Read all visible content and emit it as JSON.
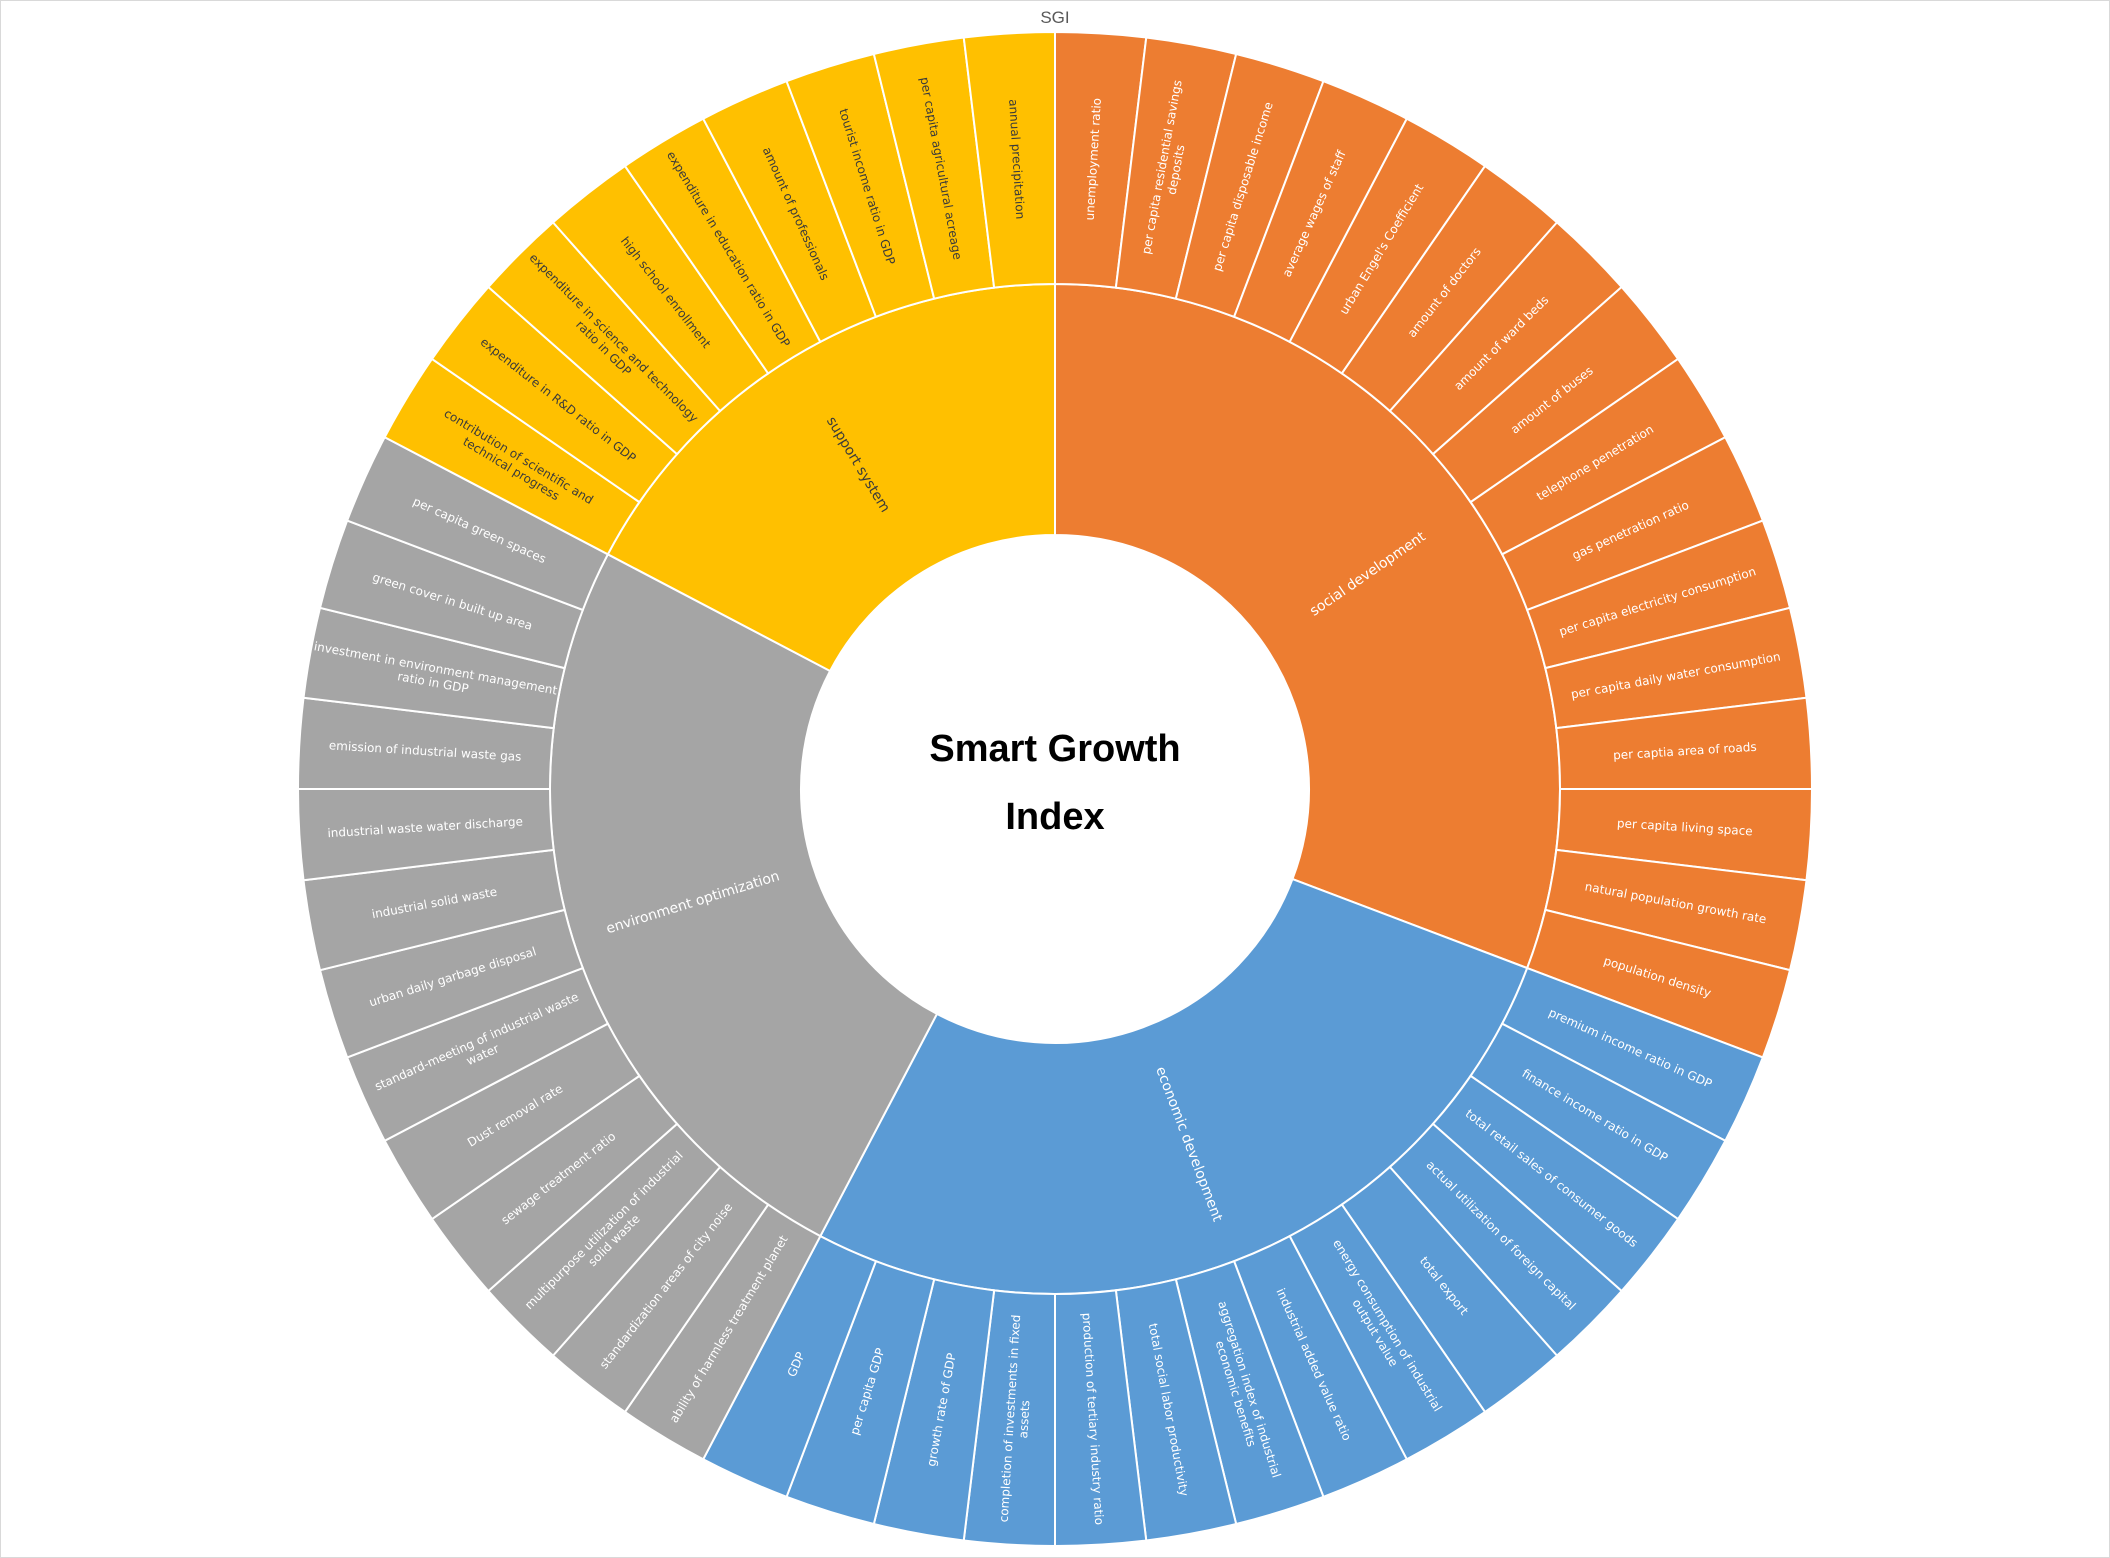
{
  "chart_data": {
    "type": "sunburst",
    "title": "SGI",
    "center_label": [
      "Smart Growth",
      "Index"
    ],
    "colors": {
      "social development": "#ED7D31",
      "economic development": "#5B9BD5",
      "environment optimization": "#A5A5A5",
      "support system": "#FFC000",
      "separator": "#FFFFFF",
      "leaf_text_light": "#FFFFFF",
      "leaf_text_dark": "#3A3A3A"
    },
    "categories": [
      {
        "name": "social development",
        "children": [
          "unemployment ratio",
          "per capita residential savings deposits",
          "per capita disposable income",
          "average wages of staff",
          "urban Engel's Coefficient",
          "amount of doctors",
          "amount of ward beds",
          "amount of buses",
          "telephone penetration",
          "gas penetration ratio",
          "per capita electricity consumption",
          "per capita daily water consumption",
          "per captia area of roads",
          "per capita living space",
          "natural population growth rate",
          "population density"
        ]
      },
      {
        "name": "economic development",
        "children": [
          "premium income ratio in GDP",
          "finance income ratio in GDP",
          "total retail sales of consumer goods",
          "actual utilization of foreign capital",
          "total export",
          "energy consumption of industrial output value",
          "industrial added value ratio",
          "aggregation index of industrial economic benefits",
          "total social labor productivity",
          "production of tertiary industry ratio",
          "completion of investments in fixed assets",
          "growth rate of GDP",
          "per capita GDP",
          "GDP"
        ]
      },
      {
        "name": "environment optimization",
        "children": [
          "ability of harmless treatment planet",
          "standardization areas of city noise",
          "multipurpose utilization of industrial solid waste",
          "sewage treatment ratio",
          "Dust removal rate",
          "standard-meeting of industrial waste water",
          "urban daily garbage disposal",
          "industrial solid waste",
          "industrial waste water discharge",
          "emission of industrial waste gas",
          "investment in environment management ratio in GDP",
          "green cover in built up area",
          "per capita green spaces"
        ]
      },
      {
        "name": "support system",
        "children": [
          "contribution of scientific and technical progress",
          "expenditure in R&D ratio in GDP",
          "expenditure in science and technology ratio in GDP",
          "high school enrollment",
          "expenditure in education ratio in GDP",
          "amount of professionals",
          "tourist income ratio in GDP",
          "per capita agricultural acreage",
          "annual precipitation"
        ]
      }
    ]
  }
}
